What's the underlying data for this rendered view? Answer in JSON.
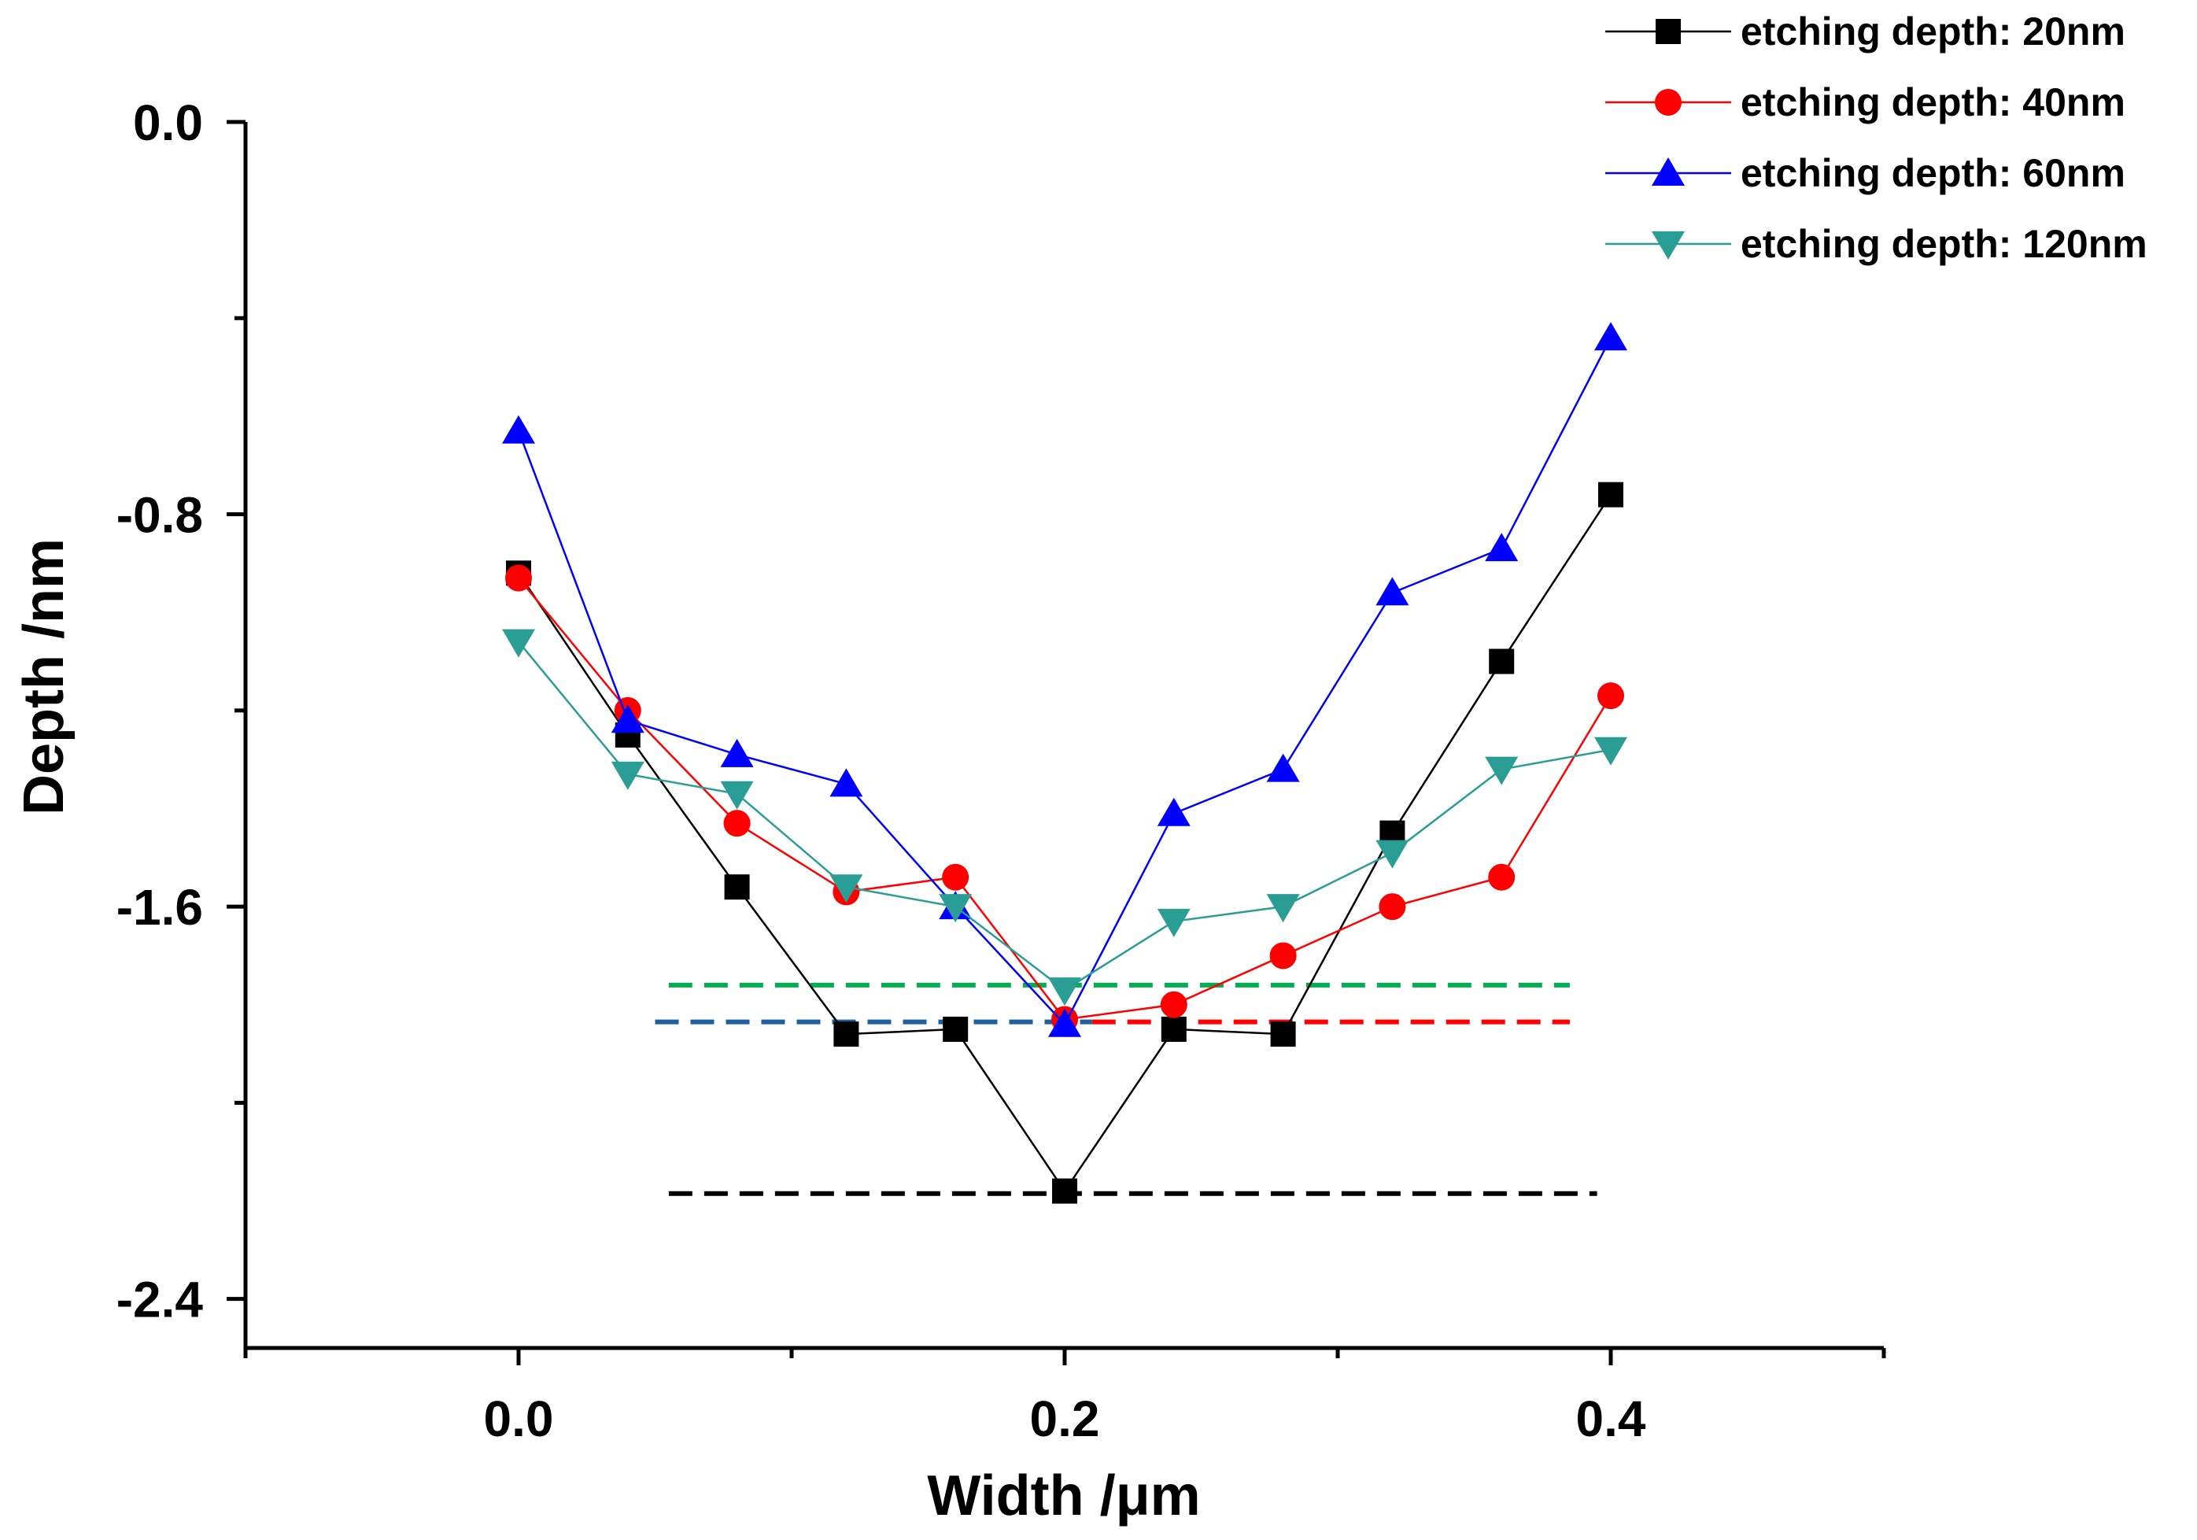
{
  "chart_data": {
    "type": "line",
    "xlabel": "Width /μm",
    "ylabel": "Depth /nm",
    "xlim": [
      -0.1,
      0.5
    ],
    "ylim": [
      -2.5,
      0.0
    ],
    "x_ticks": [
      0.0,
      0.2,
      0.4
    ],
    "x_tick_labels": [
      "0.0",
      "0.2",
      "0.4"
    ],
    "x_minor_ticks": [
      -0.1,
      0.1,
      0.3,
      0.5
    ],
    "y_ticks": [
      0.0,
      -0.8,
      -1.6,
      -2.4
    ],
    "y_tick_labels": [
      "0.0",
      "-0.8",
      "-1.6",
      "-2.4"
    ],
    "y_minor_ticks": [
      -0.4,
      -1.2,
      -2.0
    ],
    "grid": false,
    "legend_position": "top-right",
    "x": [
      0.0,
      0.04,
      0.08,
      0.12,
      0.16,
      0.2,
      0.24,
      0.28,
      0.32,
      0.36,
      0.4
    ],
    "series": [
      {
        "name": "etching depth: 20nm",
        "color": "#000000",
        "marker": "square",
        "values": [
          -0.92,
          -1.25,
          -1.56,
          -1.86,
          -1.85,
          -2.18,
          -1.85,
          -1.86,
          -1.45,
          -1.1,
          -0.76
        ]
      },
      {
        "name": "etching depth: 40nm",
        "color": "#ff0000",
        "marker": "circle",
        "values": [
          -0.93,
          -1.2,
          -1.43,
          -1.57,
          -1.54,
          -1.83,
          -1.8,
          -1.7,
          -1.6,
          -1.54,
          -1.17
        ]
      },
      {
        "name": "etching depth: 60nm",
        "color": "#0000ff",
        "marker": "triangle-up",
        "values": [
          -0.63,
          -1.22,
          -1.29,
          -1.35,
          -1.6,
          -1.84,
          -1.41,
          -1.32,
          -0.96,
          -0.87,
          -0.44
        ]
      },
      {
        "name": "etching depth: 120nm",
        "color": "#2a9d95",
        "marker": "triangle-down",
        "values": [
          -1.06,
          -1.33,
          -1.37,
          -1.56,
          -1.6,
          -1.77,
          -1.63,
          -1.6,
          -1.49,
          -1.32,
          -1.28
        ]
      }
    ],
    "reference_lines": [
      {
        "y": -1.76,
        "x_range": [
          0.055,
          0.385
        ],
        "color": "#00b050",
        "style": "dashed"
      },
      {
        "y": -1.835,
        "x_range": [
          0.05,
          0.21
        ],
        "color": "#1f5f9f",
        "style": "dashed"
      },
      {
        "y": -1.835,
        "x_range": [
          0.21,
          0.385
        ],
        "color": "#ff0000",
        "style": "dashed"
      },
      {
        "y": -2.185,
        "x_range": [
          0.055,
          0.395
        ],
        "color": "#000000",
        "style": "dashed"
      }
    ]
  }
}
